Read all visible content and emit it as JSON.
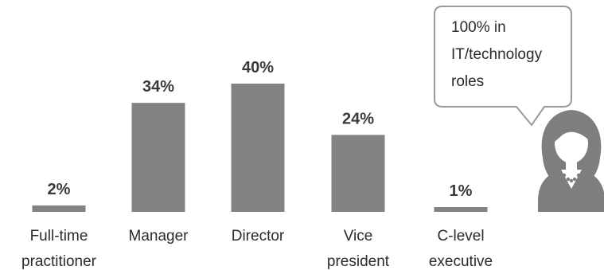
{
  "chart_data": {
    "type": "bar",
    "categories": [
      [
        "Full-time",
        "practitioner"
      ],
      [
        "Manager"
      ],
      [
        "Director"
      ],
      [
        "Vice",
        "president"
      ],
      [
        "C-level",
        "executive"
      ]
    ],
    "values": [
      2,
      34,
      40,
      24,
      1
    ],
    "value_labels": [
      "2%",
      "34%",
      "40%",
      "24%",
      "1%"
    ],
    "bar_color": "#838383",
    "value_label_color": "#3a3a3a"
  },
  "callout": {
    "lines": [
      "100% in",
      "IT/technology",
      "roles"
    ],
    "icon": "person-icon"
  }
}
